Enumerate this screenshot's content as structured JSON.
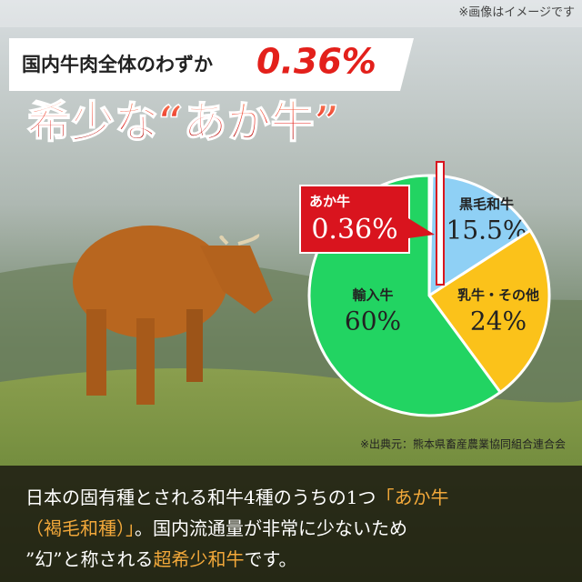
{
  "note": "※画像はイメージです",
  "header": {
    "lead": "国内牛肉全体のわずか",
    "highlight": "0.36%"
  },
  "title": "希少な“あか牛”",
  "chart_data": {
    "type": "pie",
    "categories": [
      "あか牛",
      "黒毛和牛",
      "乳牛・その他",
      "輸入牛"
    ],
    "values": [
      0.36,
      15.5,
      24,
      60
    ],
    "value_labels": [
      "0.36%",
      "15.5%",
      "24%",
      "60%"
    ],
    "colors": [
      "#d9141e",
      "#8fd0f5",
      "#fbc21a",
      "#22d462"
    ],
    "source": "※出典元：熊本県畜産農業協同組合連合会"
  },
  "footer": {
    "lines": [
      [
        "日本の固有種とされる和牛4種のうちの1つ",
        "「あか牛"
      ],
      [
        "（褐毛和種）」",
        "。国内流通量が非常に少ないため"
      ],
      [
        "”幻”と称される",
        "超希少和牛",
        "です。"
      ]
    ]
  }
}
